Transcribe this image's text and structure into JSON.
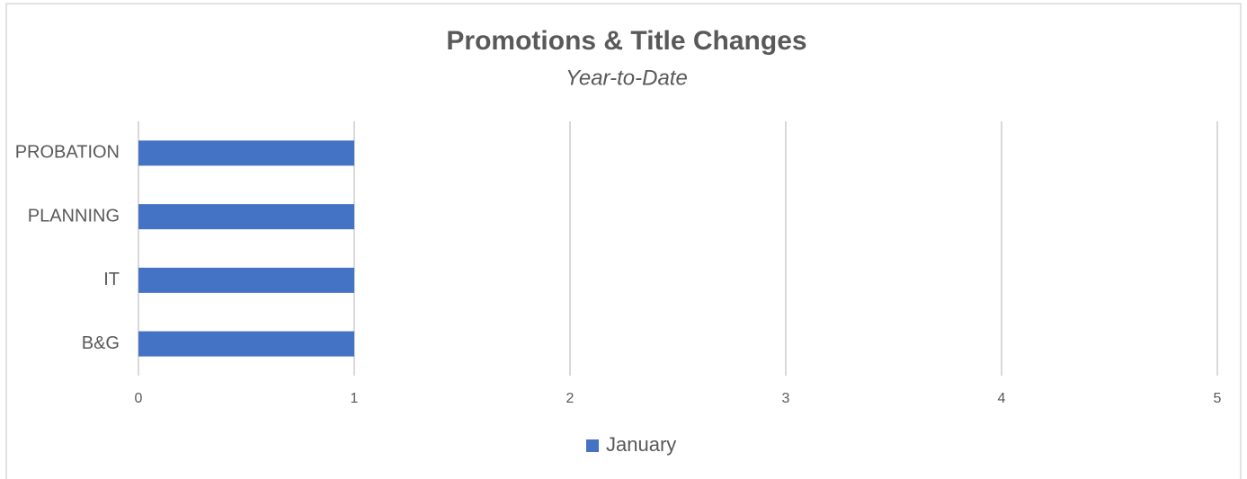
{
  "chart_data": {
    "type": "hbar",
    "title": "Promotions & Title Changes",
    "subtitle": "Year-to-Date",
    "categories": [
      "PROBATION",
      "PLANNING",
      "IT",
      "B&G"
    ],
    "series": [
      {
        "name": "January",
        "color": "#4472c4",
        "values": [
          1,
          1,
          1,
          1
        ]
      }
    ],
    "xlim": [
      0,
      5
    ],
    "xticks": [
      0,
      1,
      2,
      3,
      4,
      5
    ],
    "grid": true,
    "legend": "bottom"
  }
}
